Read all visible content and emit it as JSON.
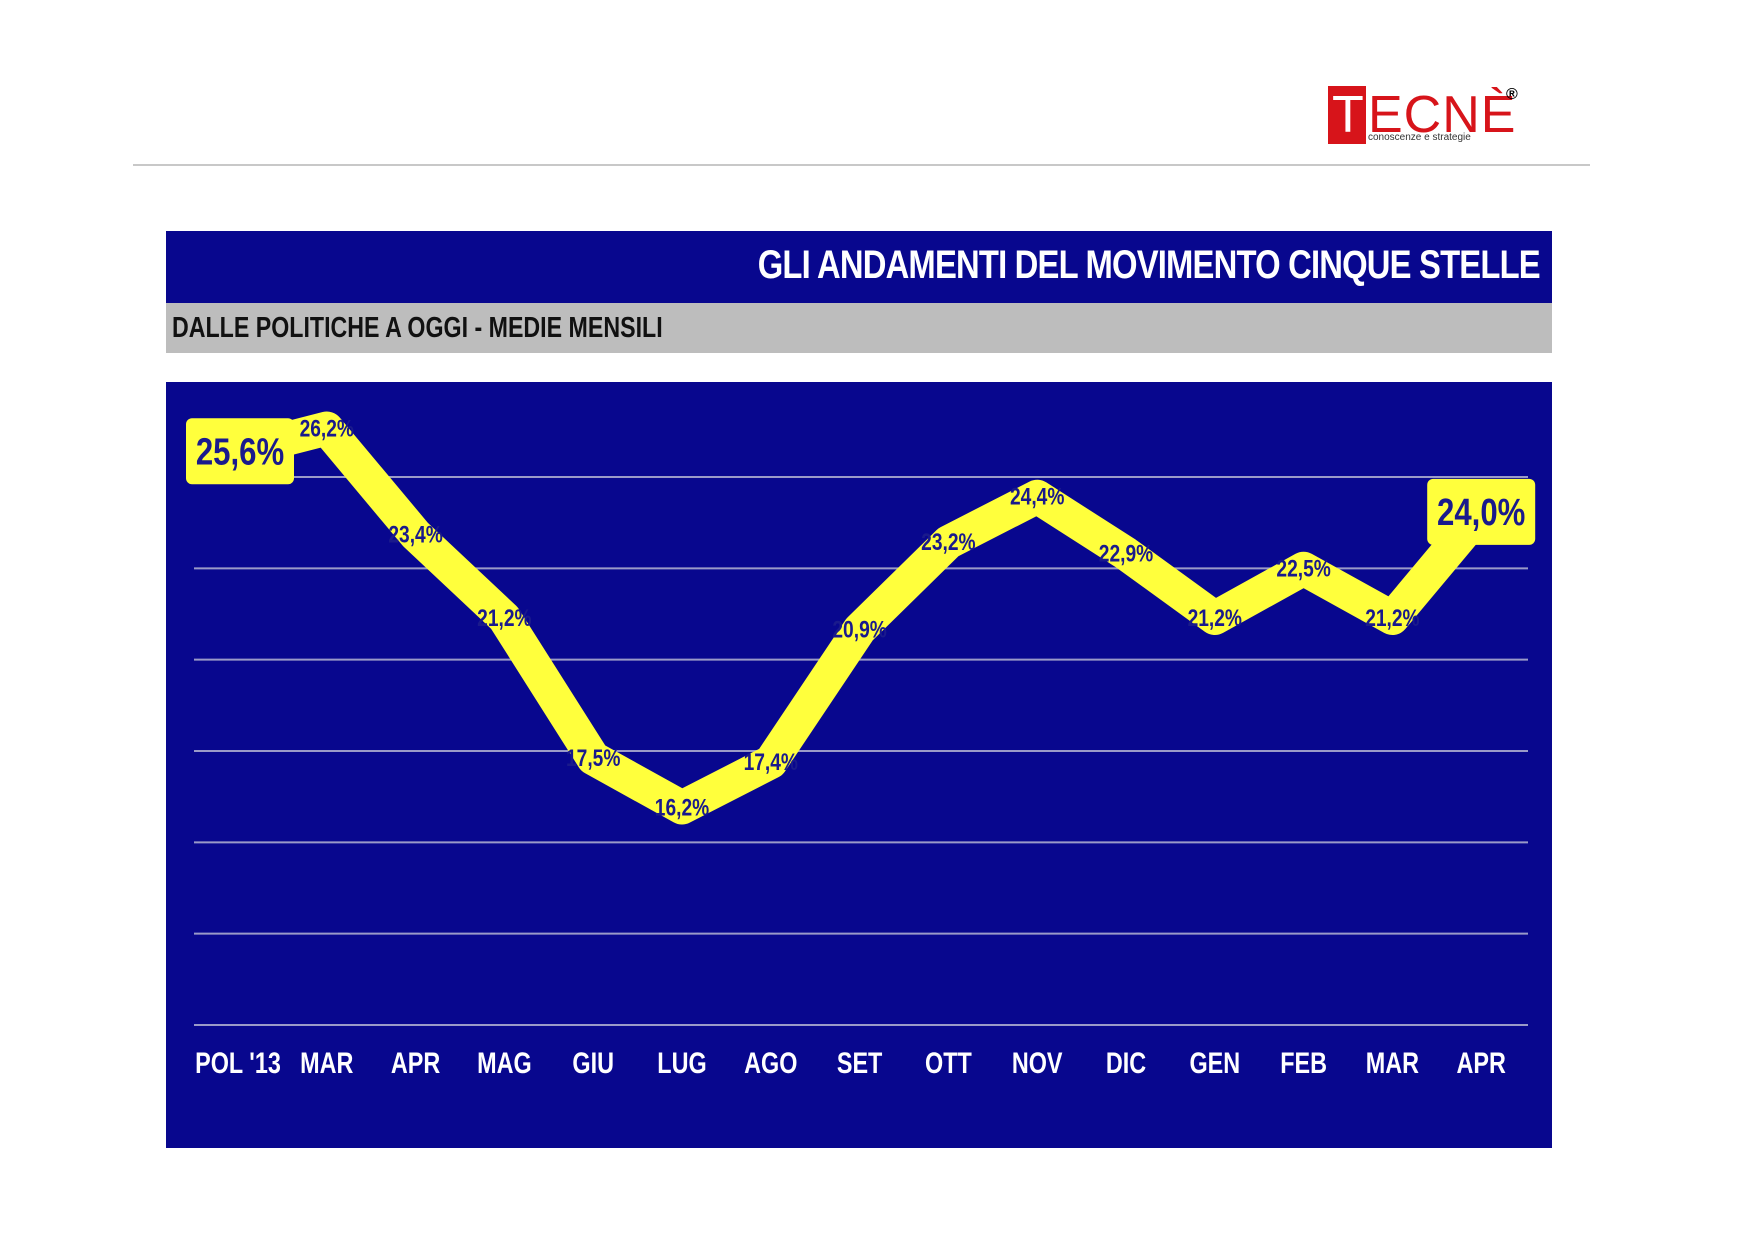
{
  "logo": {
    "text": "TECNÈ",
    "registered": "®",
    "tagline": "conoscenze e strategie"
  },
  "header": {
    "title": "GLI ANDAMENTI DEL MOVIMENTO CINQUE STELLE",
    "subtitle": "DALLE POLITICHE A OGGI - MEDIE MENSILI"
  },
  "colors": {
    "panel": "#08078e",
    "line": "#ffff3c",
    "label_text": "#1a1a8c",
    "grid": "#9a9ac8"
  },
  "chart_data": {
    "type": "line",
    "categories": [
      "POL '13",
      "MAR",
      "APR",
      "MAG",
      "GIU",
      "LUG",
      "AGO",
      "SET",
      "OTT",
      "NOV",
      "DIC",
      "GEN",
      "FEB",
      "MAR",
      "APR"
    ],
    "values": [
      25.6,
      26.2,
      23.4,
      21.2,
      17.5,
      16.2,
      17.4,
      20.9,
      23.2,
      24.4,
      22.9,
      21.2,
      22.5,
      21.2,
      24.0
    ],
    "labels": [
      "25,6%",
      "26,2%",
      "23,4%",
      "21,2%",
      "17,5%",
      "16,2%",
      "17,4%",
      "20,9%",
      "23,2%",
      "24,4%",
      "22,9%",
      "21,2%",
      "22,5%",
      "21,2%",
      "24,0%"
    ],
    "highlighted": [
      0,
      14
    ],
    "grid": true,
    "legend": "none"
  }
}
